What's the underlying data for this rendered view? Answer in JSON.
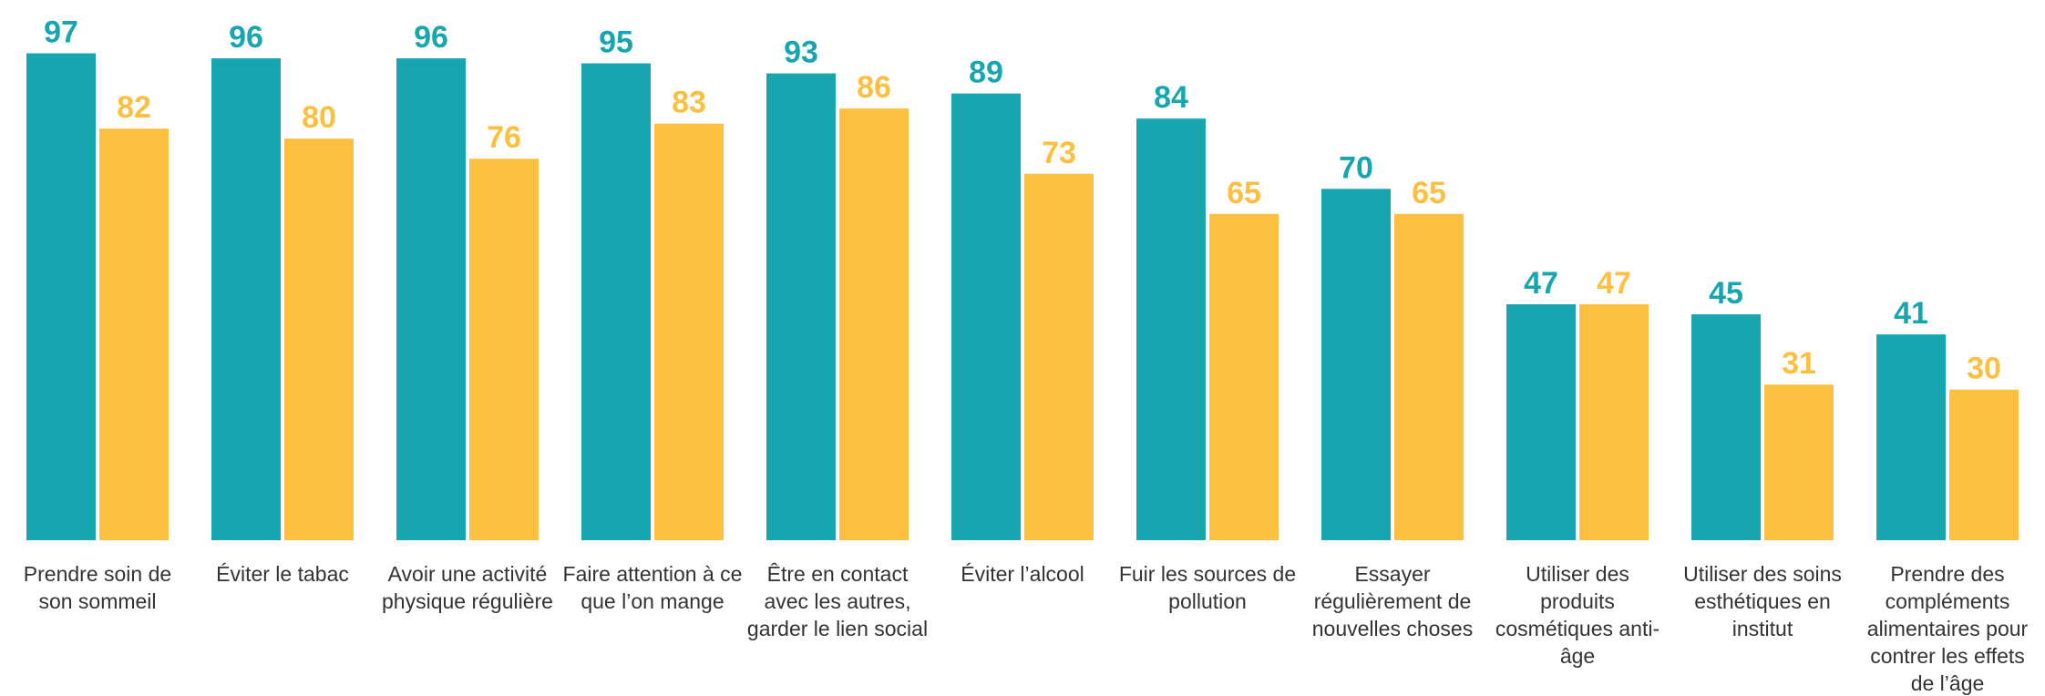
{
  "chart_data": {
    "type": "bar",
    "categories": [
      "Prendre soin de son sommeil",
      "Éviter le tabac",
      "Avoir une activité physique régulière",
      "Faire attention à ce que l’on mange",
      "Être en contact avec les autres, garder le lien social",
      "Éviter l’alcool",
      "Fuir les sources de pollution",
      "Essayer régulièrement de nouvelles choses",
      "Utiliser des produits cosmétiques anti-âge",
      "Utiliser des soins esthétiques en institut",
      "Prendre des compléments alimentaires pour contrer les effets de l’âge"
    ],
    "series": [
      {
        "color": "#17a6b0",
        "values": [
          97,
          96,
          96,
          95,
          93,
          89,
          84,
          70,
          47,
          45,
          41
        ]
      },
      {
        "color": "#fdbf40",
        "values": [
          82,
          80,
          76,
          83,
          86,
          73,
          65,
          65,
          47,
          31,
          30
        ]
      }
    ],
    "ylim": [
      0,
      100
    ]
  }
}
